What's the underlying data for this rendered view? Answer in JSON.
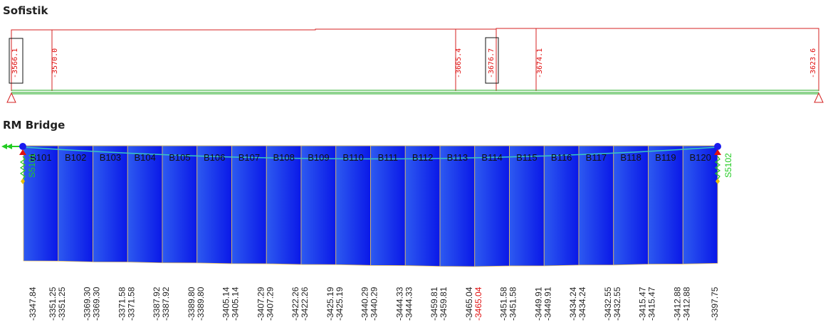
{
  "sofistik": {
    "title": "Sofistik",
    "values": [
      {
        "label": "-3566.1",
        "boxed": true
      },
      {
        "label": "-3570.0",
        "boxed": false
      },
      {
        "label": "-3665.4",
        "boxed": false
      },
      {
        "label": "-3676.7",
        "boxed": true
      },
      {
        "label": "-3674.1",
        "boxed": false
      },
      {
        "label": "-3623.6",
        "boxed": false
      }
    ]
  },
  "rm": {
    "title": "RM Bridge",
    "elements": [
      "B101",
      "B102",
      "B103",
      "B104",
      "B105",
      "B106",
      "B107",
      "B108",
      "B109",
      "B110",
      "B111",
      "B112",
      "B113",
      "B114",
      "B115",
      "B116",
      "B117",
      "B118",
      "B119",
      "B120"
    ],
    "supports": [
      "S5101",
      "S5102"
    ],
    "values": [
      "-3347.84",
      "-3351.25",
      "-3351.25",
      "-3369.30",
      "-3369.30",
      "-3371.58",
      "-3371.58",
      "-3387.92",
      "-3387.92",
      "-3389.80",
      "-3389.80",
      "-3405.14",
      "-3405.14",
      "-3407.29",
      "-3407.29",
      "-3422.26",
      "-3422.26",
      "-3425.19",
      "-3425.19",
      "-3440.29",
      "-3440.29",
      "-3444.33",
      "-3444.33",
      "-3459.81",
      "-3459.81",
      "-3465.04",
      "-3465.04",
      "-3451.58",
      "-3451.58",
      "-3449.91",
      "-3449.91",
      "-3434.24",
      "-3434.24",
      "-3432.55",
      "-3432.55",
      "-3415.47",
      "-3415.47",
      "-3412.88",
      "-3412.88",
      "-3397.75"
    ],
    "highlighted_index": 26
  },
  "colors": {
    "sofistik_line": "#d42020",
    "beam": "#22aa22",
    "fill_dark": "#0010e6",
    "fill_light": "#2a52ee",
    "divider": "#e8c060",
    "highlight": "#e01010"
  }
}
